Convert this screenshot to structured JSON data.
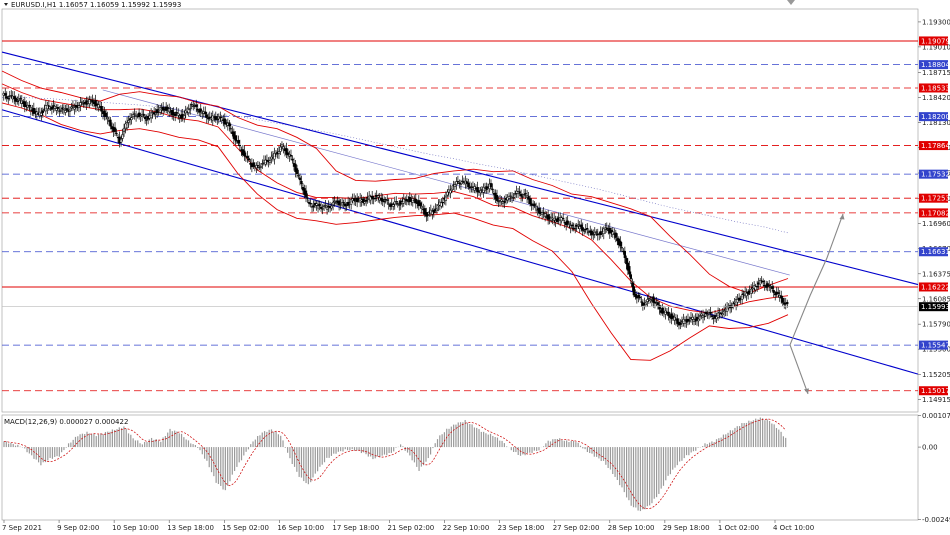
{
  "header": {
    "symbol_line": "EURUSD.I,H1   1.16057 1.16059 1.15992 1.15993",
    "macd_line": "MACD(12,26,9) 0.000027 0.000422"
  },
  "colors": {
    "background": "#ffffff",
    "grid": "#d8d8d8",
    "bull": "#000000",
    "bear": "#000000",
    "bands": "#e00000",
    "channel": "#0000cc",
    "resistance": "#e00000",
    "support": "#3344cc",
    "current_price_tag": "#000000",
    "projection": "#888888",
    "macd_hist": "#9a9a9a",
    "macd_signal": "#cc0000"
  },
  "chart_data": {
    "type": "line",
    "symbol": "EURUSD.I",
    "timeframe": "H1",
    "ohlc_last": {
      "open": 1.16057,
      "high": 1.16059,
      "low": 1.15992,
      "close": 1.15993
    },
    "y_ticks": [
      "1.19300",
      "1.19010",
      "1.18715",
      "1.18420",
      "1.18130",
      "1.17840",
      "1.17545",
      "1.17250",
      "1.16960",
      "1.16670",
      "1.16375",
      "1.16085",
      "1.15790",
      "1.15500",
      "1.15205",
      "1.14915"
    ],
    "ylim": [
      1.1477,
      1.1945
    ],
    "x_ticks": [
      "7 Sep 2021",
      "9 Sep 02:00",
      "10 Sep 10:00",
      "13 Sep 18:00",
      "15 Sep 02:00",
      "16 Sep 10:00",
      "17 Sep 18:00",
      "21 Sep 02:00",
      "22 Sep 10:00",
      "23 Sep 18:00",
      "27 Sep 02:00",
      "28 Sep 10:00",
      "29 Sep 18:00",
      "1 Oct 02:00",
      "4 Oct 10:00"
    ],
    "levels": [
      {
        "value": 1.19079,
        "label": "1.19079",
        "kind": "resistance",
        "style": "solid"
      },
      {
        "value": 1.18804,
        "label": "1.18804",
        "kind": "support",
        "style": "dashed"
      },
      {
        "value": 1.18533,
        "label": "1.18533",
        "kind": "resistance",
        "style": "dashed"
      },
      {
        "value": 1.182,
        "label": "1.18200",
        "kind": "support",
        "style": "dashed"
      },
      {
        "value": 1.17864,
        "label": "1.17864",
        "kind": "resistance",
        "style": "dashed"
      },
      {
        "value": 1.17532,
        "label": "1.17532",
        "kind": "support",
        "style": "dashed"
      },
      {
        "value": 1.17253,
        "label": "1.17253",
        "kind": "resistance",
        "style": "dashed"
      },
      {
        "value": 1.17082,
        "label": "1.17082",
        "kind": "resistance",
        "style": "dashed"
      },
      {
        "value": 1.16631,
        "label": "1.16631",
        "kind": "support",
        "style": "dashed"
      },
      {
        "value": 1.16222,
        "label": "1.16222",
        "kind": "resistance",
        "style": "solid"
      },
      {
        "value": 1.15547,
        "label": "1.15547",
        "kind": "support",
        "style": "dashed"
      },
      {
        "value": 1.15017,
        "label": "1.15017",
        "kind": "resistance",
        "style": "dashed"
      }
    ],
    "current_price": {
      "value": 1.15993,
      "label": "1.15993"
    },
    "series": [
      {
        "name": "",
        "kind": "price",
        "values": [
          1.1845,
          1.1842,
          1.1838,
          1.183,
          1.1822,
          1.1832,
          1.1829,
          1.1827,
          1.1831,
          1.1836,
          1.1838,
          1.1828,
          1.1811,
          1.1792,
          1.1818,
          1.1823,
          1.1818,
          1.1826,
          1.183,
          1.1823,
          1.182,
          1.1834,
          1.1826,
          1.1818,
          1.1819,
          1.1811,
          1.179,
          1.1772,
          1.176,
          1.1766,
          1.1773,
          1.1785,
          1.1772,
          1.1745,
          1.1718,
          1.1716,
          1.1714,
          1.1721,
          1.1717,
          1.1724,
          1.1722,
          1.1727,
          1.1725,
          1.1718,
          1.172,
          1.1724,
          1.1721,
          1.1706,
          1.1712,
          1.1725,
          1.1741,
          1.1745,
          1.1738,
          1.1733,
          1.174,
          1.172,
          1.1724,
          1.1731,
          1.1728,
          1.1714,
          1.1706,
          1.17,
          1.1701,
          1.1692,
          1.1692,
          1.1686,
          1.1683,
          1.169,
          1.1681,
          1.1658,
          1.1615,
          1.1603,
          1.1609,
          1.1595,
          1.1589,
          1.158,
          1.1584,
          1.1585,
          1.1592,
          1.1587,
          1.1595,
          1.1602,
          1.1612,
          1.1618,
          1.1628,
          1.1622,
          1.1612,
          1.16
        ]
      },
      {
        "name": "",
        "kind": "ma_dotted",
        "values": [
          1.1842,
          1.1842,
          1.1841,
          1.1839,
          1.1837,
          1.1835,
          1.1833,
          1.183,
          1.1827,
          1.1823,
          1.182,
          1.1815,
          1.181,
          1.1805,
          1.18,
          1.1794,
          1.1788,
          1.1782,
          1.1776,
          1.1771,
          1.1765,
          1.176,
          1.1754,
          1.1748,
          1.1742,
          1.1736,
          1.1729,
          1.1722,
          1.1715,
          1.1709,
          1.1703,
          1.1697,
          1.1692,
          1.1685
        ]
      }
    ],
    "bands": {
      "upper": [
        1.1873,
        1.1862,
        1.1853,
        1.1848,
        1.1842,
        1.1838,
        1.1846,
        1.1849,
        1.1845,
        1.1843,
        1.1836,
        1.1832,
        1.1819,
        1.181,
        1.1806,
        1.1796,
        1.1783,
        1.1757,
        1.1746,
        1.1745,
        1.1747,
        1.1748,
        1.1754,
        1.1757,
        1.1759,
        1.1756,
        1.1757,
        1.1747,
        1.174,
        1.173,
        1.1727,
        1.172,
        1.1713,
        1.1704,
        1.1681,
        1.166,
        1.1637,
        1.1623,
        1.1615,
        1.1624,
        1.1632
      ],
      "middle": [
        1.1858,
        1.1848,
        1.184,
        1.1836,
        1.1832,
        1.1828,
        1.1828,
        1.1829,
        1.1825,
        1.1818,
        1.1815,
        1.1808,
        1.1783,
        1.1758,
        1.1743,
        1.1732,
        1.1726,
        1.1726,
        1.1725,
        1.1728,
        1.1731,
        1.173,
        1.1731,
        1.1733,
        1.1727,
        1.1717,
        1.1715,
        1.1705,
        1.1698,
        1.169,
        1.1677,
        1.1654,
        1.1629,
        1.161,
        1.16,
        1.1595,
        1.1592,
        1.1598,
        1.1605,
        1.1609,
        1.1612
      ],
      "lower": [
        1.1836,
        1.183,
        1.1822,
        1.1811,
        1.1804,
        1.18,
        1.1804,
        1.1806,
        1.1802,
        1.1796,
        1.1793,
        1.1785,
        1.1754,
        1.173,
        1.1712,
        1.1702,
        1.1699,
        1.1695,
        1.1697,
        1.17,
        1.1703,
        1.1705,
        1.1706,
        1.1708,
        1.1702,
        1.1694,
        1.169,
        1.1676,
        1.1664,
        1.164,
        1.1603,
        1.1569,
        1.1538,
        1.1537,
        1.1548,
        1.1563,
        1.1577,
        1.1574,
        1.1575,
        1.158,
        1.159
      ]
    },
    "channel": {
      "upper_line": [
        [
          0,
          1.1895
        ],
        [
          1,
          1.1625
        ]
      ],
      "lower_line": [
        [
          0,
          1.1828
        ],
        [
          1,
          1.1521
        ]
      ],
      "ma_slow": [
        [
          0.11,
          1.1851
        ],
        [
          0.86,
          1.1636
        ]
      ]
    },
    "projections": [
      {
        "from": 1.1555,
        "to": 1.1707
      },
      {
        "from": 1.1555,
        "to": 1.1498
      }
    ],
    "macd": {
      "ylim": [
        -0.0025,
        0.0011
      ],
      "y_ticks": [
        "0.001077",
        "0.00",
        "-0.00249"
      ],
      "histogram": [
        0.0002,
        0.0001,
        0.0,
        -0.0003,
        -0.0006,
        -0.0004,
        -0.0003,
        0.0001,
        0.0004,
        0.0005,
        0.0004,
        0.0005,
        0.0006,
        0.0007,
        0.0003,
        0.0001,
        0.0003,
        0.0002,
        0.0006,
        0.0005,
        0.0002,
        0.0,
        -0.0005,
        -0.0012,
        -0.0015,
        -0.0008,
        -0.0003,
        0.0002,
        0.0005,
        0.0006,
        0.0004,
        -0.0004,
        -0.001,
        -0.0013,
        -0.0008,
        -0.0004,
        -0.0002,
        -0.0001,
        -0.0001,
        -0.0002,
        -0.0004,
        -0.0003,
        -0.0002,
        0.0001,
        -0.0003,
        -0.0008,
        -0.0004,
        0.0003,
        0.0006,
        0.0008,
        0.0009,
        0.0007,
        0.0005,
        0.0004,
        0.0002,
        -0.0001,
        -0.0003,
        -0.0002,
        -0.0001,
        0.0002,
        0.0003,
        0.0002,
        0.0002,
        -0.0001,
        -0.0003,
        -0.0005,
        -0.0009,
        -0.0014,
        -0.002,
        -0.0022,
        -0.002,
        -0.0016,
        -0.001,
        -0.0006,
        -0.0003,
        -0.0001,
        0.0001,
        0.0002,
        0.0004,
        0.0006,
        0.0008,
        0.0009,
        0.001,
        0.0009,
        0.0006,
        0.0002
      ]
    }
  }
}
